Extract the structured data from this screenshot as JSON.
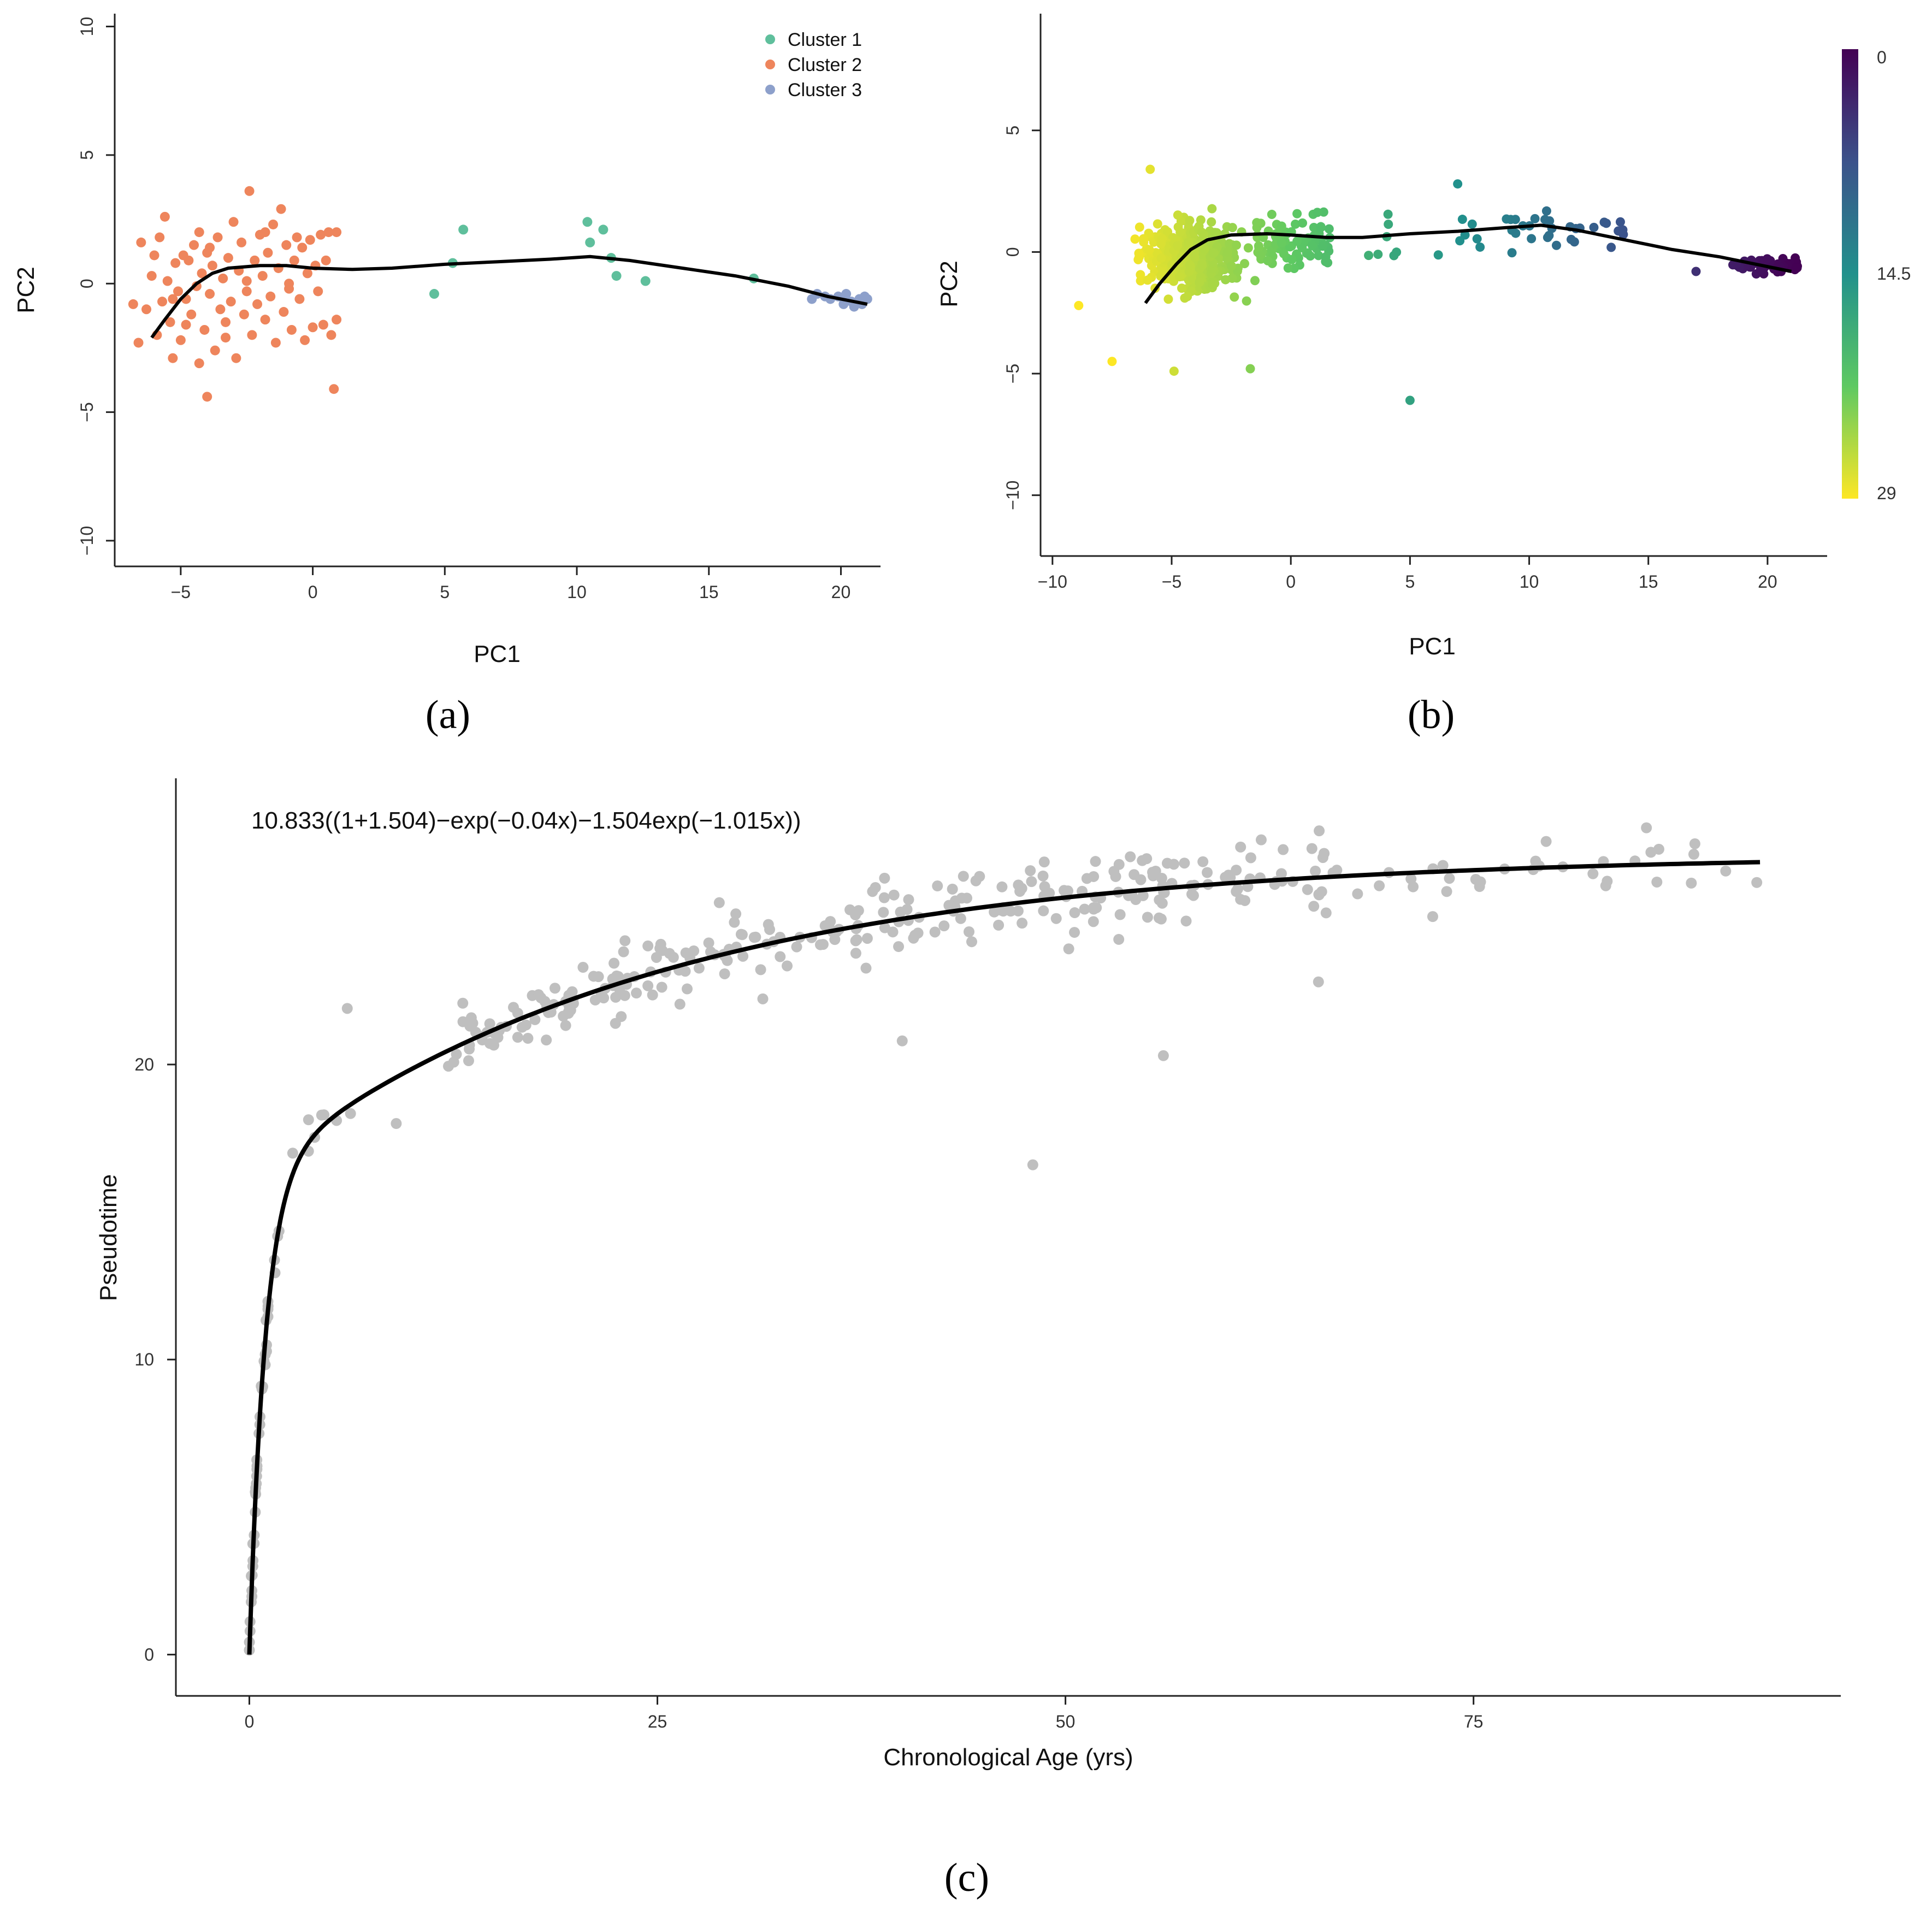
{
  "chart_data": [
    {
      "id": "a",
      "type": "scatter",
      "panel_label": "(a)",
      "xlabel": "PC1",
      "ylabel": "PC2",
      "xlim": [
        -7.5,
        21.5
      ],
      "ylim": [
        -11,
        10.5
      ],
      "xticks": [
        -5,
        0,
        5,
        10,
        15,
        20
      ],
      "yticks": [
        -10,
        -5,
        0,
        5,
        10
      ],
      "legend_position": "top-right",
      "series": [
        {
          "name": "Cluster 1",
          "color": "#5fbf9c",
          "points": [
            [
              4.6,
              -0.4
            ],
            [
              5.3,
              0.8
            ],
            [
              5.7,
              2.1
            ],
            [
              10.4,
              2.4
            ],
            [
              10.5,
              1.6
            ],
            [
              11.0,
              2.1
            ],
            [
              11.3,
              1.0
            ],
            [
              11.5,
              0.3
            ],
            [
              12.6,
              0.1
            ],
            [
              16.7,
              0.2
            ]
          ]
        },
        {
          "name": "Cluster 2",
          "color": "#ee855c",
          "points": [
            [
              -6.8,
              -0.8
            ],
            [
              -6.6,
              -2.3
            ],
            [
              -6.5,
              1.6
            ],
            [
              -6.3,
              -1.0
            ],
            [
              -6.1,
              0.3
            ],
            [
              -5.9,
              -2.0
            ],
            [
              -5.8,
              1.8
            ],
            [
              -5.7,
              -0.7
            ],
            [
              -5.6,
              2.6
            ],
            [
              -5.5,
              0.1
            ],
            [
              -5.4,
              -1.5
            ],
            [
              -5.3,
              -2.9
            ],
            [
              -5.2,
              0.8
            ],
            [
              -5.1,
              -0.3
            ],
            [
              -5.0,
              -2.2
            ],
            [
              -4.9,
              1.1
            ],
            [
              -4.8,
              -0.6
            ],
            [
              -4.7,
              0.9
            ],
            [
              -4.6,
              -1.2
            ],
            [
              -4.5,
              1.5
            ],
            [
              -4.4,
              -0.1
            ],
            [
              -4.3,
              2.0
            ],
            [
              -4.3,
              -3.1
            ],
            [
              -4.2,
              0.4
            ],
            [
              -4.1,
              -1.8
            ],
            [
              -4.0,
              -4.4
            ],
            [
              -4.0,
              1.2
            ],
            [
              -3.9,
              -0.4
            ],
            [
              -3.8,
              0.7
            ],
            [
              -3.7,
              -2.6
            ],
            [
              -3.6,
              1.8
            ],
            [
              -3.5,
              -1.0
            ],
            [
              -3.4,
              0.2
            ],
            [
              -3.3,
              -1.5
            ],
            [
              -3.2,
              1.0
            ],
            [
              -3.1,
              -0.7
            ],
            [
              -3.0,
              2.4
            ],
            [
              -2.9,
              -2.9
            ],
            [
              -2.8,
              0.5
            ],
            [
              -2.7,
              1.6
            ],
            [
              -2.6,
              -1.2
            ],
            [
              -2.5,
              0.1
            ],
            [
              -2.4,
              3.6
            ],
            [
              -2.3,
              -2.0
            ],
            [
              -2.2,
              0.9
            ],
            [
              -2.1,
              -0.8
            ],
            [
              -2.0,
              1.9
            ],
            [
              -1.9,
              0.3
            ],
            [
              -1.8,
              -1.4
            ],
            [
              -1.7,
              1.2
            ],
            [
              -1.6,
              -0.5
            ],
            [
              -1.5,
              2.3
            ],
            [
              -1.4,
              -2.3
            ],
            [
              -1.3,
              0.6
            ],
            [
              -1.2,
              2.9
            ],
            [
              -1.1,
              -1.1
            ],
            [
              -1.0,
              1.5
            ],
            [
              -0.9,
              0.0
            ],
            [
              -0.8,
              -1.8
            ],
            [
              -0.7,
              0.9
            ],
            [
              -0.6,
              1.8
            ],
            [
              -0.5,
              -0.6
            ],
            [
              -0.4,
              1.4
            ],
            [
              -0.3,
              -2.2
            ],
            [
              -0.2,
              0.4
            ],
            [
              -0.1,
              1.7
            ],
            [
              0.0,
              -1.7
            ],
            [
              0.1,
              0.7
            ],
            [
              0.2,
              -0.3
            ],
            [
              0.3,
              1.9
            ],
            [
              0.4,
              -1.6
            ],
            [
              0.5,
              0.9
            ],
            [
              0.6,
              2.0
            ],
            [
              0.7,
              -2.0
            ],
            [
              0.8,
              -4.1
            ],
            [
              0.9,
              2.0
            ],
            [
              0.9,
              -1.4
            ],
            [
              -6.0,
              1.1
            ],
            [
              -5.3,
              -0.6
            ],
            [
              -4.8,
              -1.6
            ],
            [
              -3.9,
              1.4
            ],
            [
              -3.3,
              -2.1
            ],
            [
              -2.5,
              -0.3
            ],
            [
              -1.8,
              2.0
            ],
            [
              -0.9,
              -0.2
            ]
          ]
        },
        {
          "name": "Cluster 3",
          "color": "#8da0cb",
          "points": [
            [
              18.9,
              -0.6
            ],
            [
              19.1,
              -0.4
            ],
            [
              19.4,
              -0.5
            ],
            [
              19.6,
              -0.6
            ],
            [
              19.9,
              -0.5
            ],
            [
              20.1,
              -0.8
            ],
            [
              20.2,
              -0.4
            ],
            [
              20.4,
              -0.7
            ],
            [
              20.5,
              -0.9
            ],
            [
              20.7,
              -0.6
            ],
            [
              20.8,
              -0.8
            ],
            [
              20.9,
              -0.5
            ],
            [
              21.0,
              -0.6
            ]
          ]
        }
      ],
      "curve": [
        [
          -6.1,
          -2.1
        ],
        [
          -5.6,
          -1.4
        ],
        [
          -5.0,
          -0.6
        ],
        [
          -4.4,
          0.0
        ],
        [
          -3.8,
          0.4
        ],
        [
          -3.2,
          0.6
        ],
        [
          -2.0,
          0.7
        ],
        [
          -1.0,
          0.7
        ],
        [
          0.0,
          0.6
        ],
        [
          1.5,
          0.55
        ],
        [
          3.0,
          0.6
        ],
        [
          5.0,
          0.75
        ],
        [
          7.0,
          0.85
        ],
        [
          9.0,
          0.95
        ],
        [
          10.5,
          1.05
        ],
        [
          12.0,
          0.9
        ],
        [
          14.0,
          0.6
        ],
        [
          16.0,
          0.3
        ],
        [
          18.0,
          -0.1
        ],
        [
          19.5,
          -0.5
        ],
        [
          21.0,
          -0.8
        ]
      ]
    },
    {
      "id": "b",
      "type": "scatter",
      "panel_label": "(b)",
      "xlabel": "PC1",
      "ylabel": "PC2",
      "xlim": [
        -10.5,
        22.5
      ],
      "ylim": [
        -12.5,
        9.8
      ],
      "xticks": [
        -10,
        -5,
        0,
        5,
        10,
        15,
        20
      ],
      "yticks": [
        -10,
        -5,
        0,
        5
      ],
      "colorbar": {
        "ticks": [
          "0",
          "14.5",
          "29"
        ],
        "min": 0,
        "max": 29,
        "position": "right"
      },
      "curve": [
        [
          -6.1,
          -2.1
        ],
        [
          -5.5,
          -1.3
        ],
        [
          -4.8,
          -0.5
        ],
        [
          -4.2,
          0.1
        ],
        [
          -3.5,
          0.5
        ],
        [
          -2.5,
          0.7
        ],
        [
          -1.0,
          0.75
        ],
        [
          0.0,
          0.7
        ],
        [
          1.5,
          0.6
        ],
        [
          3.0,
          0.6
        ],
        [
          5.0,
          0.75
        ],
        [
          7.0,
          0.85
        ],
        [
          9.0,
          1.0
        ],
        [
          10.5,
          1.1
        ],
        [
          12.0,
          0.9
        ],
        [
          14.0,
          0.5
        ],
        [
          16.0,
          0.1
        ],
        [
          18.0,
          -0.2
        ],
        [
          19.5,
          -0.5
        ],
        [
          21.0,
          -0.8
        ]
      ]
    },
    {
      "id": "c",
      "type": "scatter",
      "panel_label": "(c)",
      "xlabel": "Chronological Age (yrs)",
      "ylabel": "Pseudotime",
      "annotation": "10.833((1+1.504)−exp(−0.04x)−1.504exp(−1.015x))",
      "xlim": [
        -4.5,
        97.5
      ],
      "ylim": [
        -1.4,
        29.7
      ],
      "xticks": [
        0,
        25,
        50,
        75
      ],
      "yticks": [
        0,
        10,
        20
      ],
      "point_color": "#bfbfbf",
      "fit": {
        "a": 10.833,
        "b": 1.504,
        "k1": 0.04,
        "k2": 1.015,
        "x_range": [
          0,
          93
        ]
      }
    }
  ]
}
